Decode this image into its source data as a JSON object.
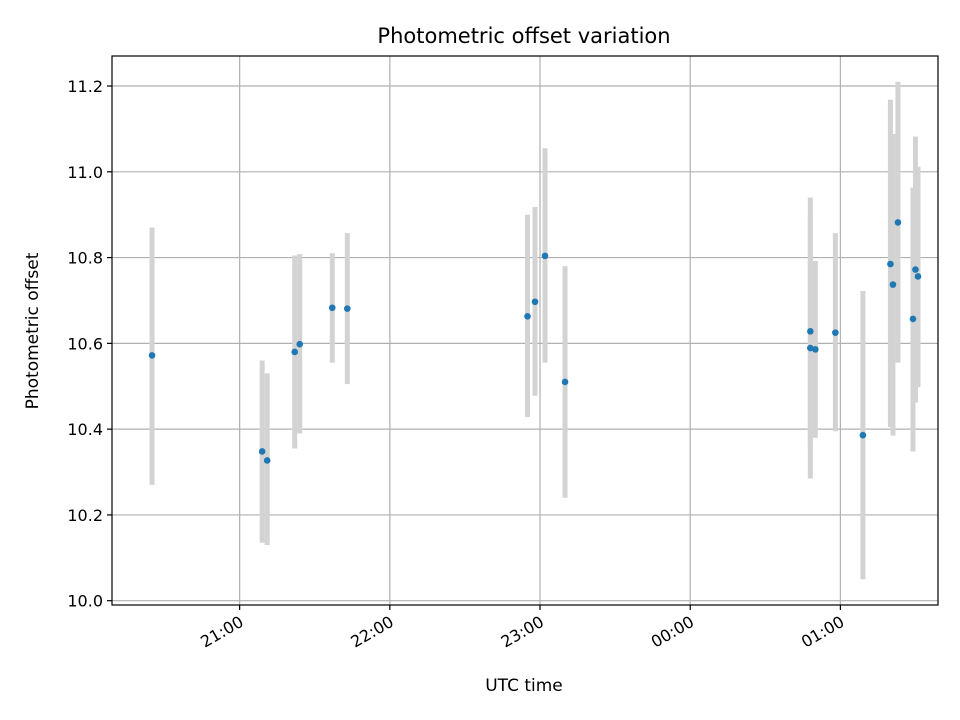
{
  "chart_data": {
    "type": "scatter",
    "title": "Photometric offset variation",
    "xlabel": "UTC time",
    "ylabel": "Photometric offset",
    "x_axis_type": "time",
    "xlim": [
      "20:09",
      "25:39"
    ],
    "ylim": [
      9.99,
      11.27
    ],
    "x_ticks": [
      {
        "label": "21:00",
        "time": "21:00"
      },
      {
        "label": "22:00",
        "time": "22:00"
      },
      {
        "label": "23:00",
        "time": "23:00"
      },
      {
        "label": "00:00",
        "time": "24:00"
      },
      {
        "label": "01:00",
        "time": "25:00"
      }
    ],
    "y_ticks": [
      10.0,
      10.2,
      10.4,
      10.6,
      10.8,
      11.0,
      11.2
    ],
    "grid": true,
    "legend": "none",
    "marker_color": "#1f77b4",
    "errorbar_color": "#d3d3d3",
    "points": [
      {
        "time": "20:25",
        "y": 10.572,
        "lo": 10.27,
        "hi": 10.87
      },
      {
        "time": "21:09",
        "y": 10.348,
        "lo": 10.135,
        "hi": 10.56
      },
      {
        "time": "21:11",
        "y": 10.327,
        "lo": 10.13,
        "hi": 10.53
      },
      {
        "time": "21:22",
        "y": 10.58,
        "lo": 10.355,
        "hi": 10.805
      },
      {
        "time": "21:24",
        "y": 10.598,
        "lo": 10.39,
        "hi": 10.808
      },
      {
        "time": "21:37",
        "y": 10.683,
        "lo": 10.555,
        "hi": 10.81
      },
      {
        "time": "21:43",
        "y": 10.681,
        "lo": 10.505,
        "hi": 10.857
      },
      {
        "time": "22:55",
        "y": 10.663,
        "lo": 10.428,
        "hi": 10.9
      },
      {
        "time": "22:58",
        "y": 10.697,
        "lo": 10.478,
        "hi": 10.918
      },
      {
        "time": "23:02",
        "y": 10.804,
        "lo": 10.555,
        "hi": 11.055
      },
      {
        "time": "23:10",
        "y": 10.51,
        "lo": 10.24,
        "hi": 10.78
      },
      {
        "time": "24:48",
        "y": 10.628,
        "lo": 10.36,
        "hi": 10.895
      },
      {
        "time": "24:48",
        "y": 10.589,
        "lo": 10.285,
        "hi": 10.94
      },
      {
        "time": "24:50",
        "y": 10.586,
        "lo": 10.38,
        "hi": 10.792
      },
      {
        "time": "24:58",
        "y": 10.625,
        "lo": 10.395,
        "hi": 10.857
      },
      {
        "time": "25:09",
        "y": 10.386,
        "lo": 10.05,
        "hi": 10.722
      },
      {
        "time": "25:20",
        "y": 10.785,
        "lo": 10.405,
        "hi": 11.168
      },
      {
        "time": "25:21",
        "y": 10.737,
        "lo": 10.385,
        "hi": 11.088
      },
      {
        "time": "25:23",
        "y": 10.882,
        "lo": 10.555,
        "hi": 11.21
      },
      {
        "time": "25:29",
        "y": 10.657,
        "lo": 10.348,
        "hi": 10.963
      },
      {
        "time": "25:30",
        "y": 10.772,
        "lo": 10.462,
        "hi": 11.082
      },
      {
        "time": "25:31",
        "y": 10.756,
        "lo": 10.498,
        "hi": 11.012
      }
    ]
  }
}
